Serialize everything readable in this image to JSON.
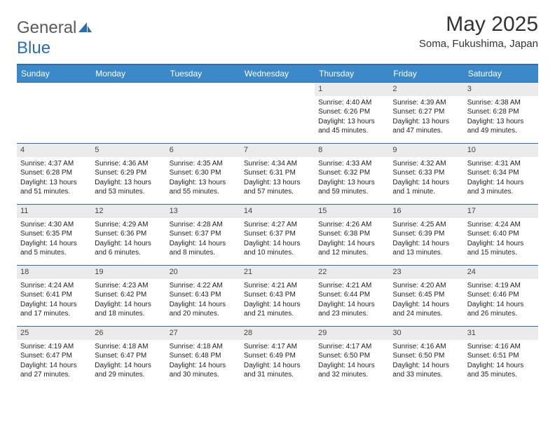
{
  "logo": {
    "part1": "General",
    "part2": "Blue"
  },
  "header": {
    "title": "May 2025",
    "location": "Soma, Fukushima, Japan"
  },
  "colors": {
    "header_bar": "#3b89c9",
    "rule": "#2a6db5",
    "daynum_bg": "#ebebeb",
    "text": "#222222"
  },
  "weekdays": [
    "Sunday",
    "Monday",
    "Tuesday",
    "Wednesday",
    "Thursday",
    "Friday",
    "Saturday"
  ],
  "weeks": [
    [
      null,
      null,
      null,
      null,
      {
        "n": "1",
        "sr": "4:40 AM",
        "ss": "6:26 PM",
        "dl": "13 hours and 45 minutes."
      },
      {
        "n": "2",
        "sr": "4:39 AM",
        "ss": "6:27 PM",
        "dl": "13 hours and 47 minutes."
      },
      {
        "n": "3",
        "sr": "4:38 AM",
        "ss": "6:28 PM",
        "dl": "13 hours and 49 minutes."
      }
    ],
    [
      {
        "n": "4",
        "sr": "4:37 AM",
        "ss": "6:28 PM",
        "dl": "13 hours and 51 minutes."
      },
      {
        "n": "5",
        "sr": "4:36 AM",
        "ss": "6:29 PM",
        "dl": "13 hours and 53 minutes."
      },
      {
        "n": "6",
        "sr": "4:35 AM",
        "ss": "6:30 PM",
        "dl": "13 hours and 55 minutes."
      },
      {
        "n": "7",
        "sr": "4:34 AM",
        "ss": "6:31 PM",
        "dl": "13 hours and 57 minutes."
      },
      {
        "n": "8",
        "sr": "4:33 AM",
        "ss": "6:32 PM",
        "dl": "13 hours and 59 minutes."
      },
      {
        "n": "9",
        "sr": "4:32 AM",
        "ss": "6:33 PM",
        "dl": "14 hours and 1 minute."
      },
      {
        "n": "10",
        "sr": "4:31 AM",
        "ss": "6:34 PM",
        "dl": "14 hours and 3 minutes."
      }
    ],
    [
      {
        "n": "11",
        "sr": "4:30 AM",
        "ss": "6:35 PM",
        "dl": "14 hours and 5 minutes."
      },
      {
        "n": "12",
        "sr": "4:29 AM",
        "ss": "6:36 PM",
        "dl": "14 hours and 6 minutes."
      },
      {
        "n": "13",
        "sr": "4:28 AM",
        "ss": "6:37 PM",
        "dl": "14 hours and 8 minutes."
      },
      {
        "n": "14",
        "sr": "4:27 AM",
        "ss": "6:37 PM",
        "dl": "14 hours and 10 minutes."
      },
      {
        "n": "15",
        "sr": "4:26 AM",
        "ss": "6:38 PM",
        "dl": "14 hours and 12 minutes."
      },
      {
        "n": "16",
        "sr": "4:25 AM",
        "ss": "6:39 PM",
        "dl": "14 hours and 13 minutes."
      },
      {
        "n": "17",
        "sr": "4:24 AM",
        "ss": "6:40 PM",
        "dl": "14 hours and 15 minutes."
      }
    ],
    [
      {
        "n": "18",
        "sr": "4:24 AM",
        "ss": "6:41 PM",
        "dl": "14 hours and 17 minutes."
      },
      {
        "n": "19",
        "sr": "4:23 AM",
        "ss": "6:42 PM",
        "dl": "14 hours and 18 minutes."
      },
      {
        "n": "20",
        "sr": "4:22 AM",
        "ss": "6:43 PM",
        "dl": "14 hours and 20 minutes."
      },
      {
        "n": "21",
        "sr": "4:21 AM",
        "ss": "6:43 PM",
        "dl": "14 hours and 21 minutes."
      },
      {
        "n": "22",
        "sr": "4:21 AM",
        "ss": "6:44 PM",
        "dl": "14 hours and 23 minutes."
      },
      {
        "n": "23",
        "sr": "4:20 AM",
        "ss": "6:45 PM",
        "dl": "14 hours and 24 minutes."
      },
      {
        "n": "24",
        "sr": "4:19 AM",
        "ss": "6:46 PM",
        "dl": "14 hours and 26 minutes."
      }
    ],
    [
      {
        "n": "25",
        "sr": "4:19 AM",
        "ss": "6:47 PM",
        "dl": "14 hours and 27 minutes."
      },
      {
        "n": "26",
        "sr": "4:18 AM",
        "ss": "6:47 PM",
        "dl": "14 hours and 29 minutes."
      },
      {
        "n": "27",
        "sr": "4:18 AM",
        "ss": "6:48 PM",
        "dl": "14 hours and 30 minutes."
      },
      {
        "n": "28",
        "sr": "4:17 AM",
        "ss": "6:49 PM",
        "dl": "14 hours and 31 minutes."
      },
      {
        "n": "29",
        "sr": "4:17 AM",
        "ss": "6:50 PM",
        "dl": "14 hours and 32 minutes."
      },
      {
        "n": "30",
        "sr": "4:16 AM",
        "ss": "6:50 PM",
        "dl": "14 hours and 33 minutes."
      },
      {
        "n": "31",
        "sr": "4:16 AM",
        "ss": "6:51 PM",
        "dl": "14 hours and 35 minutes."
      }
    ]
  ],
  "labels": {
    "sunrise": "Sunrise: ",
    "sunset": "Sunset: ",
    "daylight": "Daylight: "
  }
}
